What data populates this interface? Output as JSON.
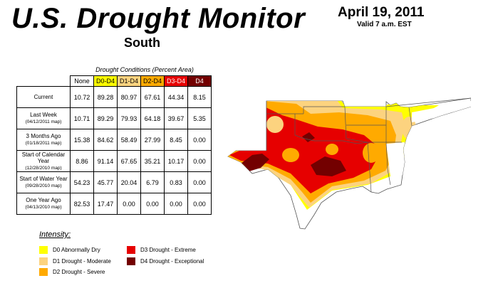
{
  "header": {
    "title": "U.S. Drought Monitor",
    "region": "South",
    "date": "April 19, 2011",
    "valid": "Valid 7 a.m. EST"
  },
  "table": {
    "caption": "Drought Conditions (Percent Area)",
    "columns": [
      "None",
      "D0-D4",
      "D1-D4",
      "D2-D4",
      "D3-D4",
      "D4"
    ],
    "column_colors": [
      "#ffffff",
      "#ffff00",
      "#fcd37f",
      "#ffaa00",
      "#e60000",
      "#730000"
    ],
    "rows": [
      {
        "label": "Current",
        "sub": "",
        "values": [
          "10.72",
          "89.28",
          "80.97",
          "67.61",
          "44.34",
          "8.15"
        ]
      },
      {
        "label": "Last Week",
        "sub": "(04/12/2011 map)",
        "values": [
          "10.71",
          "89.29",
          "79.93",
          "64.18",
          "39.67",
          "5.35"
        ]
      },
      {
        "label": "3 Months Ago",
        "sub": "(01/18/2011 map)",
        "values": [
          "15.38",
          "84.62",
          "58.49",
          "27.99",
          "8.45",
          "0.00"
        ]
      },
      {
        "label": "Start of Calendar Year",
        "sub": "(12/28/2010 map)",
        "values": [
          "8.86",
          "91.14",
          "67.65",
          "35.21",
          "10.17",
          "0.00"
        ]
      },
      {
        "label": "Start of Water Year",
        "sub": "(09/28/2010 map)",
        "values": [
          "54.23",
          "45.77",
          "20.04",
          "6.79",
          "0.83",
          "0.00"
        ]
      },
      {
        "label": "One Year Ago",
        "sub": "(04/13/2010 map)",
        "values": [
          "82.53",
          "17.47",
          "0.00",
          "0.00",
          "0.00",
          "0.00"
        ]
      }
    ]
  },
  "legend": {
    "title": "Intensity:",
    "items": [
      {
        "label": "D0 Abnormally Dry",
        "color": "#ffff00"
      },
      {
        "label": "D1 Drought - Moderate",
        "color": "#fcd37f"
      },
      {
        "label": "D2 Drought - Severe",
        "color": "#ffaa00"
      },
      {
        "label": "D3 Drought - Extreme",
        "color": "#e60000"
      },
      {
        "label": "D4 Drought - Exceptional",
        "color": "#730000"
      }
    ]
  },
  "map": {
    "region": "South",
    "colors": {
      "none": "#ffffff",
      "d0": "#ffff00",
      "d1": "#fcd37f",
      "d2": "#ffaa00",
      "d3": "#e60000",
      "d4": "#730000",
      "border": "#555555"
    }
  }
}
